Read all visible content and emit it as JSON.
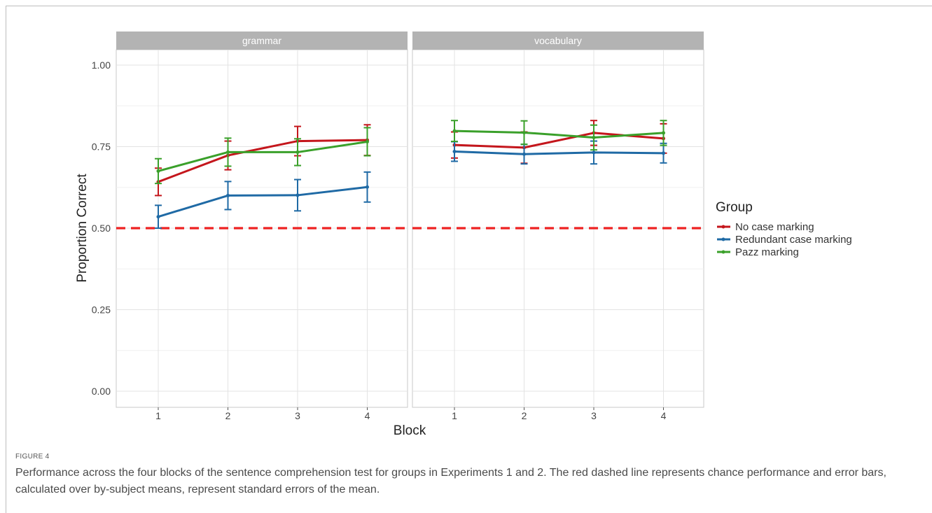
{
  "figure": {
    "label": "FIGURE 4",
    "caption": "Performance across the four blocks of the sentence comprehension test for groups in Experiments 1 and 2. The red dashed line represents chance performance and error bars, calculated over by-subject means, represent standard errors of the mean."
  },
  "chart_data": {
    "type": "line",
    "ylabel": "Proportion Correct",
    "xlabel": "Block",
    "ylim": [
      0,
      1
    ],
    "yticks": [
      "0.00",
      "0.25",
      "0.50",
      "0.75",
      "1.00"
    ],
    "x": [
      1,
      2,
      3,
      4
    ],
    "reference_line": {
      "y": 0.5,
      "style": "dashed",
      "color": "#ee2222"
    },
    "legend": {
      "title": "Group",
      "placement": "right"
    },
    "grid": true,
    "panels": [
      {
        "title": "grammar",
        "series": [
          {
            "name": "No case marking",
            "color": "#c4161c",
            "values": [
              0.642,
              0.723,
              0.767,
              0.77
            ],
            "errors": [
              0.042,
              0.044,
              0.045,
              0.047
            ]
          },
          {
            "name": "Redundant case marking",
            "color": "#1f6aa5",
            "values": [
              0.535,
              0.6,
              0.601,
              0.626
            ],
            "errors": [
              0.035,
              0.043,
              0.048,
              0.046
            ]
          },
          {
            "name": "Pazz marking",
            "color": "#3aa02a",
            "values": [
              0.675,
              0.733,
              0.733,
              0.765
            ],
            "errors": [
              0.038,
              0.043,
              0.041,
              0.043
            ]
          }
        ]
      },
      {
        "title": "vocabulary",
        "series": [
          {
            "name": "No case marking",
            "color": "#c4161c",
            "values": [
              0.755,
              0.747,
              0.792,
              0.775
            ],
            "errors": [
              0.04,
              0.048,
              0.038,
              0.045
            ]
          },
          {
            "name": "Redundant case marking",
            "color": "#1f6aa5",
            "values": [
              0.735,
              0.727,
              0.732,
              0.73
            ],
            "errors": [
              0.03,
              0.03,
              0.035,
              0.03
            ]
          },
          {
            "name": "Pazz marking",
            "color": "#3aa02a",
            "values": [
              0.798,
              0.793,
              0.778,
              0.792
            ],
            "errors": [
              0.032,
              0.036,
              0.038,
              0.038
            ]
          }
        ]
      }
    ]
  }
}
